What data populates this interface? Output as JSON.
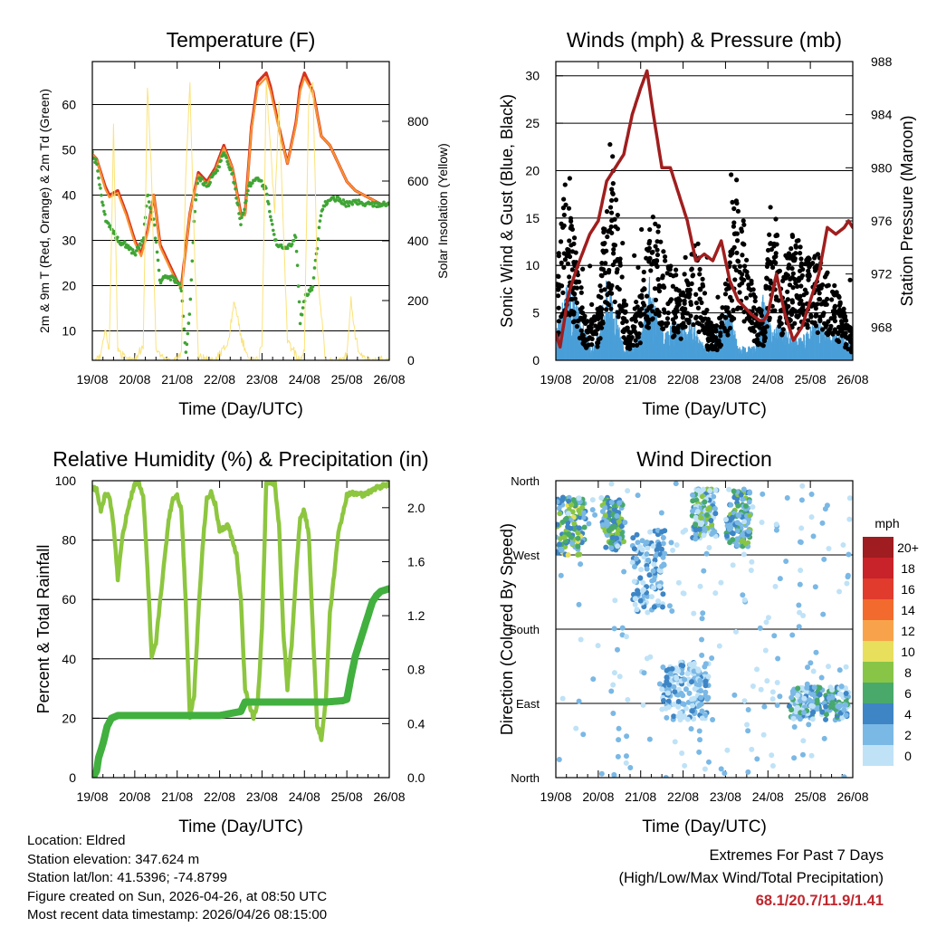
{
  "colors": {
    "temp_2m": "#d7301f",
    "temp_9m": "#f79232",
    "dewpoint": "#3fa535",
    "insolation": "#fbe37a",
    "wind": "#4a9fd8",
    "gust": "#000000",
    "pressure": "#a01e1e",
    "rh": "#8dc63f",
    "precip": "#41b03f",
    "grid": "#000000"
  },
  "x_ticks": [
    "19/08",
    "20/08",
    "21/08",
    "22/08",
    "23/08",
    "24/08",
    "25/08",
    "26/08"
  ],
  "chart_data": [
    {
      "id": "temperature",
      "type": "line",
      "title": "Temperature (F)",
      "xlabel": "Time (Day/UTC)",
      "ylabel": "2m & 9m T (Red, Orange) & 2m Td (Green)",
      "y2label": "Solar Insolation (Yellow)",
      "ylim": [
        3.5,
        69.5
      ],
      "y_ticks": [
        10,
        20,
        30,
        40,
        50,
        60
      ],
      "y2lim": [
        0,
        1000
      ],
      "y2_ticks": [
        0,
        200,
        400,
        600,
        800
      ],
      "grid": true,
      "series": [
        {
          "name": "2m T",
          "axis": "left",
          "color": "#d7301f",
          "x": [
            0,
            0.1,
            0.3,
            0.4,
            0.6,
            0.8,
            1.0,
            1.15,
            1.3,
            1.45,
            1.6,
            1.8,
            2.0,
            2.1,
            2.3,
            2.5,
            2.7,
            2.9,
            3.1,
            3.3,
            3.5,
            3.6,
            3.75,
            3.9,
            4.1,
            4.2,
            4.4,
            4.6,
            4.8,
            4.9,
            5.0,
            5.2,
            5.4,
            5.6,
            5.8,
            6.0,
            6.2,
            6.4,
            6.6,
            6.8,
            7.0
          ],
          "y": [
            49,
            48,
            42,
            40,
            41,
            36,
            30,
            27,
            32,
            40,
            29,
            25,
            21,
            20,
            36,
            45,
            43,
            46,
            51,
            46,
            36,
            36,
            55,
            65,
            67,
            64,
            55,
            47,
            56,
            64,
            67,
            63,
            53,
            51,
            47,
            43,
            41,
            40,
            39,
            38,
            38
          ]
        },
        {
          "name": "9m T",
          "axis": "left",
          "color": "#f79232",
          "x": [
            0,
            0.1,
            0.3,
            0.4,
            0.6,
            0.8,
            1.0,
            1.15,
            1.3,
            1.45,
            1.6,
            1.8,
            2.0,
            2.1,
            2.3,
            2.5,
            2.7,
            2.9,
            3.1,
            3.3,
            3.5,
            3.6,
            3.75,
            3.9,
            4.1,
            4.2,
            4.4,
            4.6,
            4.8,
            4.9,
            5.0,
            5.2,
            5.4,
            5.6,
            5.8,
            6.0,
            6.2,
            6.4,
            6.6,
            6.8,
            7.0
          ],
          "y": [
            49,
            48,
            41.5,
            39.5,
            40.5,
            35.5,
            29.5,
            26.5,
            31.5,
            40,
            28.5,
            24.5,
            20.5,
            19.5,
            36,
            44.5,
            42.5,
            45.5,
            50.5,
            46,
            35.5,
            35.5,
            54.5,
            64,
            66,
            63,
            54.5,
            47,
            55.5,
            63,
            66,
            62.5,
            53,
            51,
            47,
            43,
            41,
            40,
            39,
            38,
            38
          ]
        },
        {
          "name": "2m Td",
          "axis": "left",
          "color": "#3fa535",
          "x": [
            0,
            0.1,
            0.3,
            0.5,
            0.6,
            0.8,
            1.0,
            1.2,
            1.3,
            1.45,
            1.6,
            1.8,
            2.0,
            2.1,
            2.2,
            2.3,
            2.4,
            2.5,
            2.7,
            2.9,
            3.1,
            3.3,
            3.5,
            3.7,
            3.9,
            4.1,
            4.3,
            4.5,
            4.6,
            4.8,
            4.9,
            5.0,
            5.2,
            5.4,
            5.6,
            5.8,
            6.0,
            6.2,
            6.4,
            6.6,
            6.8,
            7.0
          ],
          "y": [
            49,
            47,
            35,
            32,
            30,
            29,
            27,
            30,
            40,
            34,
            21,
            22,
            21,
            19,
            5,
            14,
            35,
            44,
            42,
            45,
            49,
            45,
            34,
            42,
            44,
            41,
            30,
            28,
            28,
            31,
            12,
            17,
            20,
            37,
            39,
            39,
            38,
            38.5,
            38,
            38,
            38,
            38
          ]
        },
        {
          "name": "Solar Insolation",
          "axis": "right",
          "color": "#fbe37a",
          "x": [
            0,
            0.2,
            0.3,
            0.4,
            0.5,
            0.6,
            0.8,
            1.0,
            1.2,
            1.3,
            1.4,
            1.5,
            1.7,
            1.9,
            2.1,
            2.2,
            2.3,
            2.4,
            2.5,
            2.7,
            2.9,
            3.2,
            3.35,
            3.5,
            3.7,
            3.9,
            4.0,
            4.1,
            4.3,
            4.4,
            4.6,
            4.9,
            5.0,
            5.1,
            5.2,
            5.3,
            5.5,
            5.9,
            6.0,
            6.1,
            6.2,
            6.3,
            6.5,
            7.0
          ],
          "y": [
            0,
            10,
            100,
            30,
            780,
            40,
            0,
            0,
            50,
            920,
            600,
            40,
            0,
            0,
            20,
            600,
            920,
            400,
            10,
            0,
            0,
            60,
            200,
            80,
            0,
            0,
            60,
            920,
            500,
            860,
            60,
            0,
            40,
            880,
            930,
            300,
            0,
            0,
            20,
            200,
            80,
            20,
            0,
            0
          ]
        }
      ]
    },
    {
      "id": "winds",
      "type": "line",
      "title": "Winds (mph) & Pressure (mb)",
      "xlabel": "Time (Day/UTC)",
      "ylabel": "Sonic Wind & Gust (Blue, Black)",
      "y2label": "Station Pressure (Maroon)",
      "ylim": [
        0,
        31.5
      ],
      "y_ticks": [
        0,
        5,
        10,
        15,
        20,
        25,
        30
      ],
      "y2lim": [
        965.5,
        988
      ],
      "y2_ticks": [
        968,
        972,
        976,
        980,
        984,
        988
      ],
      "grid": true,
      "series": [
        {
          "name": "Sonic Wind",
          "axis": "left",
          "color": "#4a9fd8",
          "x": [
            0,
            0.3,
            0.5,
            0.8,
            1.0,
            1.2,
            1.4,
            1.6,
            1.8,
            2.0,
            2.2,
            2.4,
            2.6,
            2.8,
            3.0,
            3.2,
            3.5,
            3.7,
            3.9,
            4.1,
            4.3,
            4.5,
            4.7,
            4.9,
            5.1,
            5.3,
            5.5,
            5.7,
            5.9,
            6.1,
            6.3,
            6.5,
            6.7,
            7.0
          ],
          "y": [
            2,
            6,
            4,
            1,
            2,
            6,
            4,
            1,
            1,
            2,
            6,
            3,
            2,
            3,
            2.5,
            3,
            1,
            1,
            3,
            4,
            1,
            1,
            1,
            5,
            2,
            3,
            2,
            1.5,
            2,
            3,
            2.5,
            2,
            2,
            1
          ]
        },
        {
          "name": "Gust",
          "axis": "left",
          "color": "#000000",
          "x": [
            0,
            0.2,
            0.4,
            0.5,
            0.7,
            1.0,
            1.2,
            1.35,
            1.5,
            1.7,
            2.0,
            2.3,
            2.6,
            2.9,
            3.1,
            3.3,
            3.6,
            3.8,
            4.0,
            4.3,
            4.5,
            4.7,
            4.9,
            5.1,
            5.3,
            5.6,
            5.9,
            6.2,
            6.5,
            6.7,
            7.0
          ],
          "y": [
            5,
            14,
            10,
            8,
            3,
            4,
            14,
            16,
            9,
            3,
            5,
            12,
            8,
            6,
            7,
            10,
            3,
            3,
            5,
            15,
            8,
            5,
            3,
            14,
            7,
            10,
            8,
            8,
            6,
            5,
            2
          ]
        },
        {
          "name": "Station Pressure",
          "axis": "right",
          "color": "#a01e1e",
          "x": [
            0,
            0.1,
            0.3,
            0.5,
            0.8,
            1.0,
            1.2,
            1.4,
            1.6,
            1.8,
            2.0,
            2.15,
            2.3,
            2.5,
            2.7,
            2.9,
            3.1,
            3.3,
            3.5,
            3.7,
            3.9,
            4.1,
            4.3,
            4.6,
            4.8,
            4.9,
            5.0,
            5.2,
            5.4,
            5.6,
            5.8,
            6.0,
            6.2,
            6.4,
            6.6,
            6.8,
            6.9,
            7.0
          ],
          "y": [
            967.5,
            966.5,
            970.5,
            972.5,
            975,
            976,
            979,
            980,
            981,
            984,
            986,
            987.3,
            984,
            980,
            980,
            978,
            976,
            973,
            973.5,
            973,
            974.5,
            971.5,
            970,
            969,
            968.5,
            968.5,
            969,
            972,
            969,
            967,
            968,
            970,
            972,
            975.5,
            975,
            975.5,
            976,
            975.5
          ]
        }
      ]
    },
    {
      "id": "rh_precip",
      "type": "line",
      "title": "Relative Humidity (%) & Precipitation (in)",
      "xlabel": "Time (Day/UTC)",
      "ylabel": "Percent & Total Rainfall",
      "ylim": [
        0,
        100
      ],
      "y_ticks": [
        0,
        20,
        40,
        60,
        80,
        100
      ],
      "y2lim": [
        0,
        2.2
      ],
      "y2_ticks": [
        0.0,
        0.4,
        0.8,
        1.2,
        1.6,
        2.0
      ],
      "grid": true,
      "series": [
        {
          "name": "Relative Humidity",
          "axis": "left",
          "color": "#8dc63f",
          "x": [
            0,
            0.1,
            0.2,
            0.3,
            0.4,
            0.5,
            0.6,
            0.7,
            0.8,
            0.9,
            1.0,
            1.1,
            1.2,
            1.3,
            1.4,
            1.5,
            1.6,
            1.7,
            1.8,
            1.9,
            2.0,
            2.1,
            2.2,
            2.3,
            2.4,
            2.5,
            2.6,
            2.7,
            2.8,
            2.9,
            3.0,
            3.2,
            3.4,
            3.5,
            3.6,
            3.8,
            3.9,
            4.0,
            4.1,
            4.2,
            4.3,
            4.4,
            4.5,
            4.6,
            4.7,
            4.8,
            4.9,
            5.0,
            5.1,
            5.2,
            5.3,
            5.4,
            5.5,
            5.6,
            5.8,
            6.0,
            6.2,
            6.4,
            6.6,
            6.8,
            7.0
          ],
          "y": [
            98,
            97,
            90,
            95,
            95,
            85,
            67,
            80,
            88,
            94,
            99,
            99,
            95,
            70,
            40,
            45,
            60,
            73,
            87,
            94,
            95,
            90,
            60,
            20,
            28,
            55,
            78,
            94,
            96,
            92,
            83,
            85,
            75,
            60,
            30,
            20,
            25,
            50,
            99,
            99,
            99,
            85,
            50,
            30,
            45,
            68,
            88,
            90,
            82,
            50,
            18,
            13,
            25,
            55,
            82,
            95,
            96,
            95,
            97,
            98,
            99
          ]
        },
        {
          "name": "Total Precipitation",
          "axis": "right",
          "color": "#41b03f",
          "x": [
            0,
            0.05,
            0.1,
            0.15,
            0.25,
            0.35,
            0.45,
            0.6,
            1.0,
            1.6,
            2.0,
            2.5,
            3.0,
            3.5,
            3.6,
            4.0,
            4.5,
            5.0,
            5.5,
            5.9,
            6.0,
            6.1,
            6.2,
            6.3,
            6.4,
            6.5,
            6.6,
            6.7,
            6.8,
            7.0
          ],
          "y": [
            0.0,
            0.02,
            0.05,
            0.15,
            0.25,
            0.38,
            0.44,
            0.46,
            0.46,
            0.46,
            0.46,
            0.46,
            0.46,
            0.49,
            0.56,
            0.56,
            0.56,
            0.56,
            0.56,
            0.57,
            0.58,
            0.75,
            0.9,
            1.0,
            1.1,
            1.2,
            1.3,
            1.35,
            1.38,
            1.4
          ]
        }
      ]
    },
    {
      "id": "wind_direction",
      "type": "scatter",
      "title": "Wind Direction",
      "xlabel": "Time (Day/UTC)",
      "ylabel": "Direction (Colored By Speed)",
      "y_ticks": [
        "North",
        "East",
        "South",
        "West",
        "North"
      ],
      "y_values": [
        0,
        90,
        180,
        270,
        360
      ],
      "ylim": [
        0,
        360
      ],
      "grid": true,
      "clusters": [
        {
          "x": [
            0.0,
            0.7
          ],
          "dir": [
            270,
            340
          ],
          "speed": [
            2,
            10
          ]
        },
        {
          "x": [
            1.1,
            1.6
          ],
          "dir": [
            275,
            340
          ],
          "speed": [
            2,
            9
          ]
        },
        {
          "x": [
            1.8,
            2.6
          ],
          "dir": [
            200,
            300
          ],
          "speed": [
            0,
            5
          ]
        },
        {
          "x": [
            2.5,
            3.6
          ],
          "dir": [
            70,
            140
          ],
          "speed": [
            0,
            5
          ]
        },
        {
          "x": [
            3.2,
            3.8
          ],
          "dir": [
            290,
            350
          ],
          "speed": [
            0,
            9
          ]
        },
        {
          "x": [
            4.0,
            4.6
          ],
          "dir": [
            280,
            350
          ],
          "speed": [
            1,
            9
          ]
        },
        {
          "x": [
            5.5,
            6.9
          ],
          "dir": [
            70,
            110
          ],
          "speed": [
            0,
            7
          ]
        },
        {
          "x": [
            0.0,
            7.0
          ],
          "dir": [
            0,
            360
          ],
          "speed": [
            0,
            3
          ]
        }
      ],
      "colorbar": {
        "unit": "mph",
        "labels": [
          "20+",
          "18",
          "16",
          "14",
          "12",
          "10",
          "8",
          "6",
          "4",
          "2",
          "0"
        ],
        "colors": [
          "#9f1c20",
          "#c8222a",
          "#e03b2d",
          "#f26a2d",
          "#f8a34b",
          "#e8df5c",
          "#88c546",
          "#48a96b",
          "#3e85c5",
          "#7ab8e5",
          "#bfe2f7"
        ]
      }
    }
  ],
  "info": {
    "location": "Location: Eldred",
    "elevation": "Station elevation: 347.624 m",
    "latlon": "Station lat/lon: 41.5396; -74.8799",
    "created": "Figure created on Sun, 2026-04-26, at 08:50 UTC",
    "latest": "Most recent data timestamp: 2026/04/26 08:15:00"
  },
  "extremes": {
    "heading": "Extremes For Past 7 Days",
    "subheading": "(High/Low/Max Wind/Total Precipitation)",
    "values": "68.1/20.7/11.9/1.41"
  }
}
